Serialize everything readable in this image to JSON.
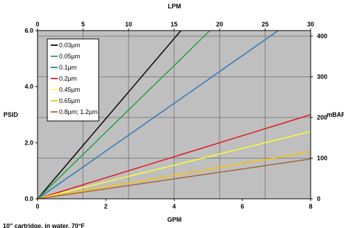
{
  "chart_data": {
    "type": "line",
    "footnote": "10\" cartridge, in water, 70°F",
    "x_bottom": {
      "label": "GPM",
      "range": [
        0,
        8
      ],
      "ticks": [
        0,
        2,
        4,
        6,
        8
      ]
    },
    "x_top": {
      "label": "LPM",
      "range": [
        0,
        30
      ],
      "ticks": [
        0,
        5,
        10,
        15,
        20,
        25,
        30
      ]
    },
    "y_left": {
      "label": "PSID",
      "range": [
        0,
        6
      ],
      "ticks": [
        "0.0",
        "2.0",
        "4.0",
        "6.0"
      ]
    },
    "y_right": {
      "label": "mBAR",
      "range": [
        0,
        413.7
      ],
      "ticks": [
        0,
        100,
        200,
        300,
        400
      ]
    },
    "grid": true,
    "background_color": "#bfbfbf",
    "legend_position": "top-left",
    "series": [
      {
        "name": "0.03µm",
        "color": "#000000",
        "x": [
          0,
          4.2
        ],
        "y": [
          0,
          6.0
        ]
      },
      {
        "name": "0.05µm",
        "color": "#21a045",
        "x": [
          0,
          5.05
        ],
        "y": [
          0,
          6.0
        ]
      },
      {
        "name": "0.1µm",
        "color": "#2e75b6",
        "x": [
          0,
          7.05
        ],
        "y": [
          0,
          6.0
        ]
      },
      {
        "name": "0.2µm",
        "color": "#e0141e",
        "x": [
          0,
          8
        ],
        "y": [
          0,
          3.0
        ]
      },
      {
        "name": "0.45µm",
        "color": "#ffff33",
        "x": [
          0,
          8
        ],
        "y": [
          0,
          2.4
        ]
      },
      {
        "name": "0.65µm",
        "color": "#ffc000",
        "x": [
          0,
          8
        ],
        "y": [
          0,
          1.68
        ]
      },
      {
        "name": "0.8µm; 1.2µm",
        "color": "#a0643c",
        "x": [
          0,
          8
        ],
        "y": [
          0,
          1.42
        ]
      }
    ]
  }
}
